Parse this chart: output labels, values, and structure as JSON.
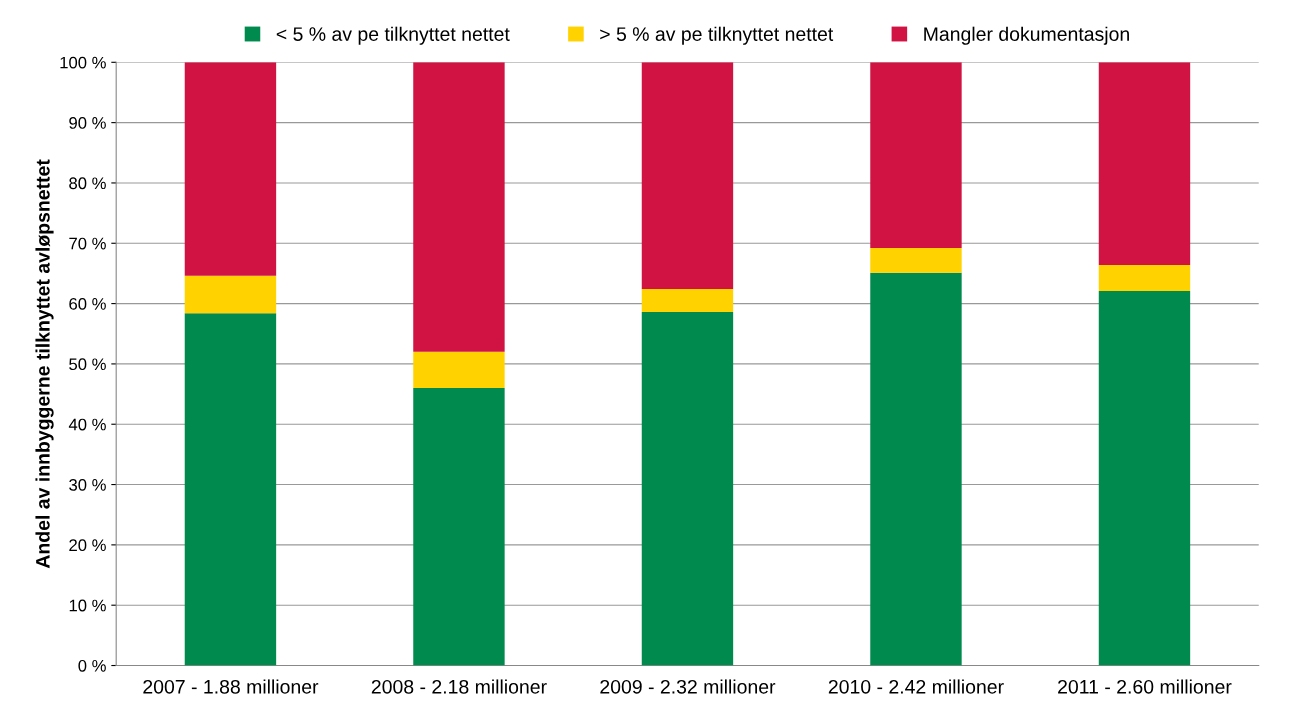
{
  "chart_data": {
    "type": "bar",
    "stacked": true,
    "ylabel": "Andel av innbyggerne tilknyttet avløpsnettet",
    "categories": [
      "2007 - 1.88 millioner",
      "2008 - 2.18 millioner",
      "2009 - 2.32 millioner",
      "2010 - 2.42 millioner",
      "2011 - 2.60 millioner"
    ],
    "series": [
      {
        "name": "< 5 % av pe tilknyttet nettet",
        "color": "#008a4e",
        "values": [
          58.4,
          46.0,
          58.6,
          65.1,
          62.1
        ]
      },
      {
        "name": "> 5 % av pe tilknyttet nettet",
        "color": "#ffd200",
        "values": [
          6.2,
          6.0,
          3.8,
          4.1,
          4.3
        ]
      },
      {
        "name": "Mangler dokumentasjon",
        "color": "#d01342",
        "values": [
          35.4,
          48.0,
          37.6,
          30.8,
          33.6
        ]
      }
    ],
    "ylim": [
      0,
      100
    ],
    "yticks": [
      {
        "value": 0,
        "label": "0 %"
      },
      {
        "value": 10,
        "label": "10 %"
      },
      {
        "value": 20,
        "label": "20 %"
      },
      {
        "value": 30,
        "label": "30 %"
      },
      {
        "value": 40,
        "label": "40 %"
      },
      {
        "value": 50,
        "label": "50 %"
      },
      {
        "value": 60,
        "label": "60 %"
      },
      {
        "value": 70,
        "label": "70 %"
      },
      {
        "value": 80,
        "label": "80 %"
      },
      {
        "value": 90,
        "label": "90 %"
      },
      {
        "value": 100,
        "label": "100 %"
      }
    ],
    "grid": "y",
    "legend": "top"
  }
}
